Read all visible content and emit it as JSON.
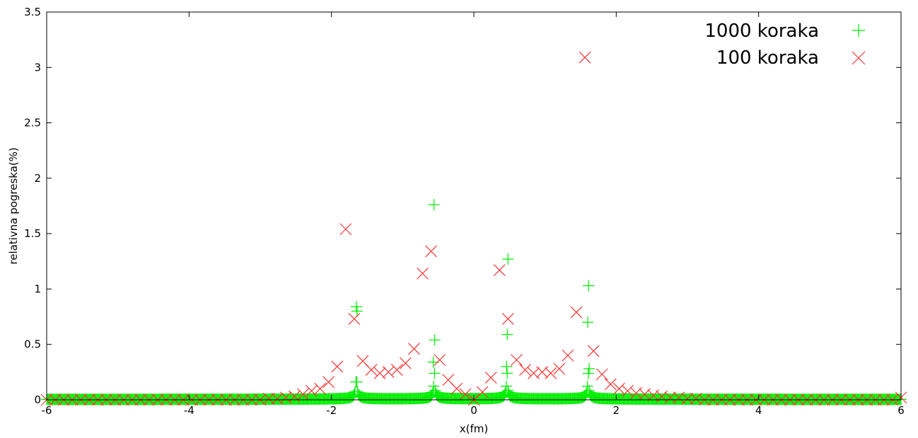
{
  "chart_data": {
    "type": "scatter",
    "xlabel": "x(fm)",
    "ylabel": "relativna pogreska(%)",
    "xlim": [
      -6,
      6
    ],
    "ylim": [
      0,
      3.5
    ],
    "xticks": [
      "-6",
      "-4",
      "-2",
      "0",
      "2",
      "4",
      "6"
    ],
    "yticks": [
      "0",
      "0.5",
      "1",
      "1.5",
      "2",
      "2.5",
      "3",
      "3.5"
    ],
    "grid": false,
    "legend_position": "top-right",
    "series": [
      {
        "name": "1000 koraka",
        "marker": "plus",
        "color": "#00ee00",
        "description": "dense markers every 0.012 fm, near zero everywhere with sharp peaks near x=-1.65, -0.55, 0.45, 1.6",
        "peaks": [
          {
            "x": -1.65,
            "y": 0.84
          },
          {
            "x": -1.64,
            "y": 0.8
          },
          {
            "x": -0.56,
            "y": 1.76
          },
          {
            "x": -0.55,
            "y": 0.54
          },
          {
            "x": -0.57,
            "y": 0.34
          },
          {
            "x": 0.48,
            "y": 1.27
          },
          {
            "x": 0.47,
            "y": 0.59
          },
          {
            "x": 0.46,
            "y": 0.3
          },
          {
            "x": 1.61,
            "y": 1.03
          },
          {
            "x": 1.6,
            "y": 0.7
          },
          {
            "x": 1.62,
            "y": 0.28
          }
        ]
      },
      {
        "name": "100 koraka",
        "marker": "cross",
        "color": "#ff3333",
        "points": [
          [
            -6.0,
            0.0
          ],
          [
            -5.88,
            0.0
          ],
          [
            -5.76,
            0.0
          ],
          [
            -5.64,
            0.0
          ],
          [
            -5.52,
            0.0
          ],
          [
            -5.4,
            0.0
          ],
          [
            -5.28,
            0.0
          ],
          [
            -5.16,
            0.0
          ],
          [
            -5.04,
            0.0
          ],
          [
            -4.92,
            0.0
          ],
          [
            -4.8,
            0.0
          ],
          [
            -4.68,
            0.0
          ],
          [
            -4.56,
            0.0
          ],
          [
            -4.44,
            0.0
          ],
          [
            -4.32,
            0.0
          ],
          [
            -4.2,
            0.0
          ],
          [
            -4.08,
            0.0
          ],
          [
            -3.96,
            0.0
          ],
          [
            -3.84,
            0.0
          ],
          [
            -3.72,
            0.0
          ],
          [
            -3.6,
            0.0
          ],
          [
            -3.48,
            0.0
          ],
          [
            -3.36,
            0.0
          ],
          [
            -3.24,
            0.0
          ],
          [
            -3.12,
            0.0
          ],
          [
            -3.0,
            0.0
          ],
          [
            -2.88,
            0.01
          ],
          [
            -2.76,
            0.01
          ],
          [
            -2.64,
            0.02
          ],
          [
            -2.52,
            0.03
          ],
          [
            -2.4,
            0.05
          ],
          [
            -2.28,
            0.08
          ],
          [
            -2.16,
            0.1
          ],
          [
            -2.04,
            0.16
          ],
          [
            -1.92,
            0.3
          ],
          [
            -1.8,
            1.54
          ],
          [
            -1.68,
            0.73
          ],
          [
            -1.56,
            0.35
          ],
          [
            -1.44,
            0.27
          ],
          [
            -1.32,
            0.24
          ],
          [
            -1.2,
            0.25
          ],
          [
            -1.08,
            0.27
          ],
          [
            -0.96,
            0.33
          ],
          [
            -0.84,
            0.46
          ],
          [
            -0.72,
            1.14
          ],
          [
            -0.6,
            1.34
          ],
          [
            -0.48,
            0.36
          ],
          [
            -0.36,
            0.18
          ],
          [
            -0.24,
            0.1
          ],
          [
            -0.12,
            0.05
          ],
          [
            0.0,
            0.0
          ],
          [
            0.12,
            0.07
          ],
          [
            0.24,
            0.2
          ],
          [
            0.36,
            1.17
          ],
          [
            0.48,
            0.73
          ],
          [
            0.6,
            0.36
          ],
          [
            0.72,
            0.27
          ],
          [
            0.84,
            0.24
          ],
          [
            0.96,
            0.25
          ],
          [
            1.08,
            0.24
          ],
          [
            1.2,
            0.28
          ],
          [
            1.32,
            0.4
          ],
          [
            1.44,
            0.79
          ],
          [
            1.56,
            3.09
          ],
          [
            1.68,
            0.44
          ],
          [
            1.8,
            0.23
          ],
          [
            1.92,
            0.14
          ],
          [
            2.04,
            0.1
          ],
          [
            2.16,
            0.08
          ],
          [
            2.28,
            0.06
          ],
          [
            2.4,
            0.05
          ],
          [
            2.52,
            0.04
          ],
          [
            2.64,
            0.03
          ],
          [
            2.76,
            0.02
          ],
          [
            2.88,
            0.02
          ],
          [
            3.0,
            0.01
          ],
          [
            3.12,
            0.01
          ],
          [
            3.24,
            0.0
          ],
          [
            3.36,
            0.0
          ],
          [
            3.48,
            0.0
          ],
          [
            3.6,
            0.0
          ],
          [
            3.72,
            0.0
          ],
          [
            3.84,
            0.0
          ],
          [
            3.96,
            0.0
          ],
          [
            4.08,
            0.0
          ],
          [
            4.2,
            0.0
          ],
          [
            4.32,
            0.0
          ],
          [
            4.44,
            0.0
          ],
          [
            4.56,
            0.0
          ],
          [
            4.68,
            0.0
          ],
          [
            4.8,
            0.0
          ],
          [
            4.92,
            0.0
          ],
          [
            5.04,
            0.0
          ],
          [
            5.16,
            0.0
          ],
          [
            5.28,
            0.0
          ],
          [
            5.4,
            0.0
          ],
          [
            5.52,
            0.0
          ],
          [
            5.64,
            0.0
          ],
          [
            5.76,
            0.0
          ],
          [
            5.88,
            0.0
          ],
          [
            6.0,
            0.02
          ]
        ]
      }
    ]
  }
}
